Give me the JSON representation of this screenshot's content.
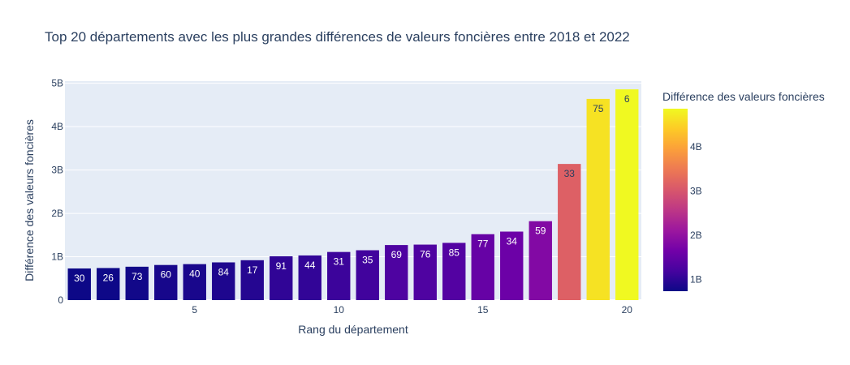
{
  "chart_data": {
    "type": "bar",
    "title": "Top 20 départements avec les plus grandes différences de valeurs foncières entre 2018 et 2022",
    "xlabel": "Rang du département",
    "ylabel": "Différence des valeurs foncières",
    "x": [
      1,
      2,
      3,
      4,
      5,
      6,
      7,
      8,
      9,
      10,
      11,
      12,
      13,
      14,
      15,
      16,
      17,
      18,
      19,
      20
    ],
    "values": [
      0.73,
      0.74,
      0.77,
      0.81,
      0.83,
      0.87,
      0.92,
      1.01,
      1.03,
      1.11,
      1.15,
      1.27,
      1.28,
      1.32,
      1.52,
      1.58,
      1.82,
      3.14,
      4.64,
      4.86
    ],
    "value_unit": "milliards (B)",
    "bar_labels": [
      "30",
      "26",
      "73",
      "60",
      "40",
      "84",
      "17",
      "91",
      "44",
      "31",
      "35",
      "69",
      "76",
      "85",
      "77",
      "34",
      "59",
      "33",
      "75",
      "6"
    ],
    "xlim": [
      0.5,
      20.5
    ],
    "ylim": [
      0,
      5.05
    ],
    "x_ticks": [
      5,
      10,
      15,
      20
    ],
    "y_ticks": [
      {
        "value": 0,
        "label": "0"
      },
      {
        "value": 1,
        "label": "1B"
      },
      {
        "value": 2,
        "label": "2B"
      },
      {
        "value": 3,
        "label": "3B"
      },
      {
        "value": 4,
        "label": "4B"
      },
      {
        "value": 5,
        "label": "5B"
      }
    ],
    "grid": true,
    "colorbar": {
      "title": "Différence des valeurs foncières",
      "range": [
        0.73,
        4.86
      ],
      "ticks": [
        {
          "value": 1,
          "label": "1B"
        },
        {
          "value": 2,
          "label": "2B"
        },
        {
          "value": 3,
          "label": "3B"
        },
        {
          "value": 4,
          "label": "4B"
        }
      ],
      "colorscale": [
        "#0d0887",
        "#46039f",
        "#7201a8",
        "#9c179e",
        "#bd3786",
        "#d8576b",
        "#ed7953",
        "#fb9f3a",
        "#fdca26",
        "#f0f921"
      ]
    },
    "plot_background": "#e5ecf6",
    "text_color": "#2a3f5f"
  }
}
